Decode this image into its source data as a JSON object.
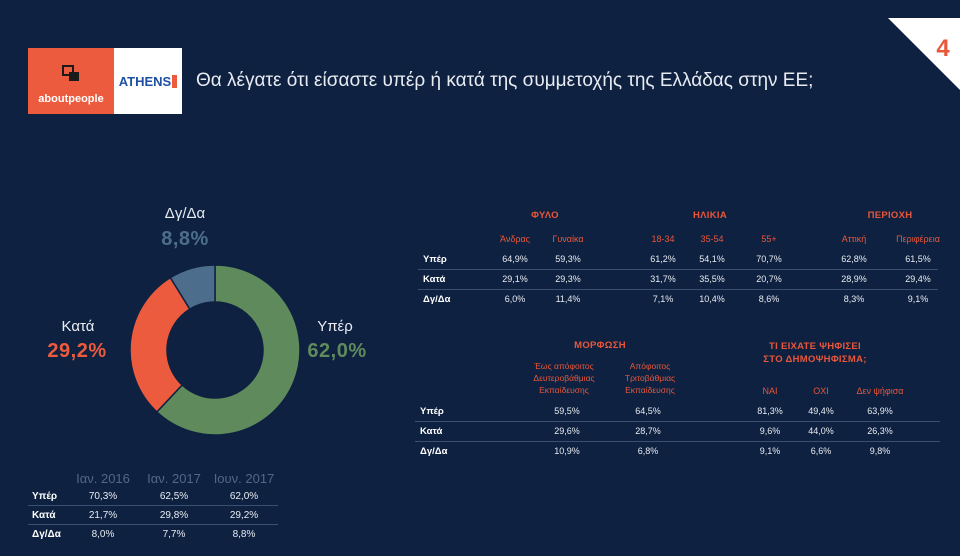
{
  "header": {
    "title": "Θα λέγατε ότι είσαστε υπέρ ή κατά της συμμετοχής της Ελλάδας στην ΕΕ;",
    "logo_about": "aboutpeople",
    "logo_athens": "ATHENS",
    "page_number": "4"
  },
  "colors": {
    "background": "#0f2140",
    "yper": "#5e8a5c",
    "kata": "#ec5b3e",
    "dgda": "#4c6e8c",
    "accent": "#e8573a"
  },
  "chart_data": [
    {
      "type": "pie",
      "donut": true,
      "slices": [
        {
          "label": "Υπέρ",
          "display": "62,0%",
          "value": 62.0,
          "color": "#5e8a5c"
        },
        {
          "label": "Κατά",
          "display": "29,2%",
          "value": 29.2,
          "color": "#ec5b3e"
        },
        {
          "label": "Δγ/Δα",
          "display": "8,8%",
          "value": 8.8,
          "color": "#4c6e8c"
        }
      ]
    },
    {
      "type": "table",
      "name": "demographics",
      "groups": [
        {
          "title": "ΦΥΛΟ",
          "columns": [
            "Άνδρας",
            "Γυναίκα"
          ]
        },
        {
          "title": "ΗΛΙΚΙΑ",
          "columns": [
            "18-34",
            "35-54",
            "55+"
          ]
        },
        {
          "title": "ΠΕΡΙΟΧΗ",
          "columns": [
            "Αττική",
            "Περιφέρεια"
          ]
        }
      ],
      "rows": [
        {
          "label": "Υπέρ",
          "values": [
            "64,9%",
            "59,3%",
            "61,2%",
            "54,1%",
            "70,7%",
            "62,8%",
            "61,5%"
          ]
        },
        {
          "label": "Κατά",
          "values": [
            "29,1%",
            "29,3%",
            "31,7%",
            "35,5%",
            "20,7%",
            "28,9%",
            "29,4%"
          ]
        },
        {
          "label": "Δγ/Δα",
          "values": [
            "6,0%",
            "11,4%",
            "7,1%",
            "10,4%",
            "8,6%",
            "8,3%",
            "9,1%"
          ]
        }
      ]
    },
    {
      "type": "table",
      "name": "education_referendum",
      "groups": [
        {
          "title": "ΜΟΡΦΩΣΗ",
          "columns": [
            [
              "Έως απόφοιτος",
              "Δευτεροβάθμιας",
              "Εκπαίδευσης"
            ],
            [
              "Απόφοιτος",
              "Τριτοβάθμιας",
              "Εκπαίδευσης"
            ]
          ]
        },
        {
          "title_lines": [
            "ΤΙ ΕΙΧΑΤΕ ΨΗΦΙΣΕΙ",
            "ΣΤΟ ΔΗΜΟΨΗΦΙΣΜΑ;"
          ],
          "columns": [
            "ΝΑΙ",
            "ΟΧΙ",
            "Δεν ψήφισα"
          ]
        }
      ],
      "rows": [
        {
          "label": "Υπέρ",
          "values": [
            "59,5%",
            "64,5%",
            "81,3%",
            "49,4%",
            "63,9%"
          ]
        },
        {
          "label": "Κατά",
          "values": [
            "29,6%",
            "28,7%",
            "9,6%",
            "44,0%",
            "26,3%"
          ]
        },
        {
          "label": "Δγ/Δα",
          "values": [
            "10,9%",
            "6,8%",
            "9,1%",
            "6,6%",
            "9,8%"
          ]
        }
      ]
    },
    {
      "type": "table",
      "name": "history",
      "columns": [
        "Ιαν. 2016",
        "Ιαν. 2017",
        "Ιουν. 2017"
      ],
      "rows": [
        {
          "label": "Υπέρ",
          "values": [
            "70,3%",
            "62,5%",
            "62,0%"
          ]
        },
        {
          "label": "Κατά",
          "values": [
            "21,7%",
            "29,8%",
            "29,2%"
          ]
        },
        {
          "label": "Δγ/Δα",
          "values": [
            "8,0%",
            "7,7%",
            "8,8%"
          ]
        }
      ]
    }
  ]
}
